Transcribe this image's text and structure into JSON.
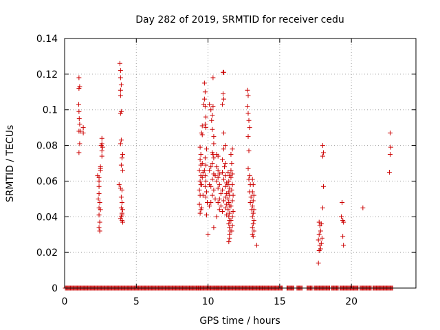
{
  "chart_data": {
    "type": "scatter",
    "title": "Day 282 of 2019, SRMTID for receiver cedu",
    "xlabel": "GPS time / hours",
    "ylabel": "SRMTID / TECUs",
    "xlim": [
      0,
      24.5
    ],
    "ylim": [
      0,
      0.14
    ],
    "grid": true,
    "x_ticks": [
      0,
      5,
      10,
      15,
      20
    ],
    "x_tick_labels": [
      "0",
      "5",
      "10",
      "15",
      "20"
    ],
    "y_ticks": [
      0,
      0.02,
      0.04,
      0.06,
      0.08,
      0.1,
      0.12,
      0.14
    ],
    "y_tick_labels": [
      "0",
      "0.02",
      "0.04",
      "0.06",
      "0.08",
      "0.1",
      "0.12",
      "0.14"
    ],
    "marker": "+",
    "color": "#cc0000",
    "series": [
      {
        "name": "SRMTID",
        "points": [
          [
            1.0,
            0.118
          ],
          [
            1.05,
            0.113
          ],
          [
            1.0,
            0.112
          ],
          [
            0.98,
            0.103
          ],
          [
            1.0,
            0.099
          ],
          [
            1.02,
            0.095
          ],
          [
            1.05,
            0.092
          ],
          [
            1.0,
            0.088
          ],
          [
            1.1,
            0.088
          ],
          [
            1.3,
            0.09
          ],
          [
            1.3,
            0.087
          ],
          [
            1.05,
            0.081
          ],
          [
            1.0,
            0.076
          ],
          [
            2.3,
            0.063
          ],
          [
            2.4,
            0.062
          ],
          [
            2.5,
            0.068
          ],
          [
            2.5,
            0.067
          ],
          [
            2.5,
            0.066
          ],
          [
            2.4,
            0.06
          ],
          [
            2.4,
            0.057
          ],
          [
            2.4,
            0.053
          ],
          [
            2.35,
            0.05
          ],
          [
            2.45,
            0.048
          ],
          [
            2.4,
            0.045
          ],
          [
            2.5,
            0.044
          ],
          [
            2.4,
            0.041
          ],
          [
            2.45,
            0.037
          ],
          [
            2.4,
            0.034
          ],
          [
            2.45,
            0.032
          ],
          [
            2.6,
            0.084
          ],
          [
            2.6,
            0.081
          ],
          [
            2.55,
            0.08
          ],
          [
            2.65,
            0.079
          ],
          [
            2.6,
            0.077
          ],
          [
            2.6,
            0.074
          ],
          [
            3.85,
            0.126
          ],
          [
            3.9,
            0.122
          ],
          [
            3.9,
            0.118
          ],
          [
            3.95,
            0.114
          ],
          [
            3.9,
            0.111
          ],
          [
            3.9,
            0.108
          ],
          [
            3.95,
            0.099
          ],
          [
            3.9,
            0.098
          ],
          [
            3.95,
            0.083
          ],
          [
            3.9,
            0.081
          ],
          [
            4.0,
            0.073
          ],
          [
            4.05,
            0.075
          ],
          [
            3.95,
            0.069
          ],
          [
            4.05,
            0.066
          ],
          [
            3.8,
            0.058
          ],
          [
            3.9,
            0.056
          ],
          [
            4.0,
            0.055
          ],
          [
            3.95,
            0.051
          ],
          [
            4.0,
            0.048
          ],
          [
            3.95,
            0.045
          ],
          [
            4.05,
            0.044
          ],
          [
            4.0,
            0.042
          ],
          [
            4.0,
            0.041
          ],
          [
            3.9,
            0.039
          ],
          [
            4.0,
            0.038
          ],
          [
            4.05,
            0.037
          ],
          [
            3.95,
            0.04
          ],
          [
            9.45,
            0.079
          ],
          [
            9.5,
            0.075
          ],
          [
            9.45,
            0.072
          ],
          [
            9.5,
            0.069
          ],
          [
            9.4,
            0.066
          ],
          [
            9.5,
            0.063
          ],
          [
            9.45,
            0.06
          ],
          [
            9.5,
            0.058
          ],
          [
            9.4,
            0.055
          ],
          [
            9.45,
            0.052
          ],
          [
            9.4,
            0.047
          ],
          [
            9.5,
            0.044
          ],
          [
            9.45,
            0.042
          ],
          [
            9.6,
            0.091
          ],
          [
            9.55,
            0.087
          ],
          [
            9.6,
            0.086
          ],
          [
            9.6,
            0.07
          ],
          [
            9.65,
            0.065
          ],
          [
            9.6,
            0.062
          ],
          [
            9.55,
            0.058
          ],
          [
            9.65,
            0.052
          ],
          [
            9.55,
            0.045
          ],
          [
            9.75,
            0.115
          ],
          [
            9.8,
            0.11
          ],
          [
            9.7,
            0.103
          ],
          [
            9.8,
            0.102
          ],
          [
            9.75,
            0.106
          ],
          [
            9.85,
            0.096
          ],
          [
            9.8,
            0.092
          ],
          [
            9.85,
            0.09
          ],
          [
            9.9,
            0.078
          ],
          [
            9.8,
            0.073
          ],
          [
            9.85,
            0.069
          ],
          [
            9.75,
            0.066
          ],
          [
            9.8,
            0.063
          ],
          [
            9.85,
            0.06
          ],
          [
            9.8,
            0.057
          ],
          [
            9.9,
            0.054
          ],
          [
            9.85,
            0.051
          ],
          [
            9.95,
            0.048
          ],
          [
            9.9,
            0.041
          ],
          [
            10.0,
            0.03
          ],
          [
            10.1,
            0.103
          ],
          [
            10.2,
            0.1
          ],
          [
            10.3,
            0.097
          ],
          [
            10.25,
            0.094
          ],
          [
            10.3,
            0.089
          ],
          [
            10.35,
            0.118
          ],
          [
            10.35,
            0.102
          ],
          [
            10.4,
            0.085
          ],
          [
            10.4,
            0.081
          ],
          [
            10.3,
            0.076
          ],
          [
            10.35,
            0.075
          ],
          [
            10.4,
            0.073
          ],
          [
            10.3,
            0.07
          ],
          [
            10.2,
            0.068
          ],
          [
            10.1,
            0.066
          ],
          [
            10.4,
            0.064
          ],
          [
            10.5,
            0.063
          ],
          [
            10.3,
            0.061
          ],
          [
            10.1,
            0.058
          ],
          [
            10.2,
            0.057
          ],
          [
            10.4,
            0.055
          ],
          [
            10.3,
            0.052
          ],
          [
            10.5,
            0.05
          ],
          [
            10.2,
            0.048
          ],
          [
            10.1,
            0.046
          ],
          [
            10.4,
            0.034
          ],
          [
            10.6,
            0.075
          ],
          [
            10.7,
            0.074
          ],
          [
            10.6,
            0.068
          ],
          [
            10.7,
            0.066
          ],
          [
            10.8,
            0.064
          ],
          [
            10.7,
            0.062
          ],
          [
            10.6,
            0.06
          ],
          [
            10.8,
            0.058
          ],
          [
            10.7,
            0.056
          ],
          [
            10.9,
            0.053
          ],
          [
            10.8,
            0.05
          ],
          [
            10.7,
            0.048
          ],
          [
            10.9,
            0.046
          ],
          [
            10.8,
            0.044
          ],
          [
            10.6,
            0.04
          ],
          [
            11.05,
            0.121
          ],
          [
            11.1,
            0.121
          ],
          [
            11.05,
            0.109
          ],
          [
            11.1,
            0.106
          ],
          [
            11.0,
            0.103
          ],
          [
            11.1,
            0.087
          ],
          [
            11.2,
            0.08
          ],
          [
            11.1,
            0.078
          ],
          [
            11.0,
            0.072
          ],
          [
            11.2,
            0.07
          ],
          [
            11.15,
            0.068
          ],
          [
            11.0,
            0.065
          ],
          [
            11.2,
            0.063
          ],
          [
            11.1,
            0.061
          ],
          [
            11.3,
            0.059
          ],
          [
            11.2,
            0.057
          ],
          [
            11.0,
            0.055
          ],
          [
            11.3,
            0.053
          ],
          [
            11.2,
            0.051
          ],
          [
            11.1,
            0.049
          ],
          [
            11.3,
            0.047
          ],
          [
            11.2,
            0.045
          ],
          [
            11.0,
            0.043
          ],
          [
            11.3,
            0.041
          ],
          [
            11.4,
            0.065
          ],
          [
            11.5,
            0.063
          ],
          [
            11.45,
            0.06
          ],
          [
            11.4,
            0.058
          ],
          [
            11.5,
            0.056
          ],
          [
            11.45,
            0.054
          ],
          [
            11.5,
            0.052
          ],
          [
            11.4,
            0.05
          ],
          [
            11.45,
            0.048
          ],
          [
            11.5,
            0.046
          ],
          [
            11.4,
            0.044
          ],
          [
            11.5,
            0.042
          ],
          [
            11.45,
            0.04
          ],
          [
            11.5,
            0.038
          ],
          [
            11.45,
            0.036
          ],
          [
            11.5,
            0.034
          ],
          [
            11.55,
            0.032
          ],
          [
            11.5,
            0.03
          ],
          [
            11.5,
            0.028
          ],
          [
            11.45,
            0.026
          ],
          [
            11.6,
            0.075
          ],
          [
            11.65,
            0.07
          ],
          [
            11.6,
            0.066
          ],
          [
            11.7,
            0.078
          ],
          [
            11.7,
            0.064
          ],
          [
            11.6,
            0.062
          ],
          [
            11.7,
            0.058
          ],
          [
            11.65,
            0.055
          ],
          [
            11.75,
            0.052
          ],
          [
            11.7,
            0.049
          ],
          [
            11.6,
            0.046
          ],
          [
            11.75,
            0.043
          ],
          [
            11.7,
            0.04
          ],
          [
            11.6,
            0.038
          ],
          [
            11.7,
            0.035
          ],
          [
            11.65,
            0.032
          ],
          [
            12.75,
            0.111
          ],
          [
            12.8,
            0.108
          ],
          [
            12.75,
            0.102
          ],
          [
            12.8,
            0.098
          ],
          [
            12.85,
            0.094
          ],
          [
            12.9,
            0.09
          ],
          [
            12.8,
            0.085
          ],
          [
            12.85,
            0.077
          ],
          [
            12.8,
            0.067
          ],
          [
            12.9,
            0.063
          ],
          [
            12.85,
            0.061
          ],
          [
            12.95,
            0.058
          ],
          [
            12.9,
            0.054
          ],
          [
            13.0,
            0.051
          ],
          [
            12.95,
            0.048
          ],
          [
            13.05,
            0.044
          ],
          [
            13.1,
            0.061
          ],
          [
            13.15,
            0.058
          ],
          [
            13.1,
            0.054
          ],
          [
            13.2,
            0.052
          ],
          [
            13.15,
            0.049
          ],
          [
            13.1,
            0.046
          ],
          [
            13.2,
            0.044
          ],
          [
            13.15,
            0.042
          ],
          [
            13.1,
            0.04
          ],
          [
            13.2,
            0.038
          ],
          [
            13.15,
            0.036
          ],
          [
            13.1,
            0.034
          ],
          [
            13.2,
            0.032
          ],
          [
            13.1,
            0.03
          ],
          [
            13.15,
            0.029
          ],
          [
            13.4,
            0.024
          ],
          [
            17.75,
            0.037
          ],
          [
            17.8,
            0.035
          ],
          [
            17.75,
            0.03
          ],
          [
            17.7,
            0.027
          ],
          [
            17.8,
            0.024
          ],
          [
            17.75,
            0.021
          ],
          [
            17.7,
            0.014
          ],
          [
            17.9,
            0.036
          ],
          [
            17.85,
            0.032
          ],
          [
            17.95,
            0.028
          ],
          [
            17.9,
            0.025
          ],
          [
            17.85,
            0.022
          ],
          [
            18.0,
            0.08
          ],
          [
            18.05,
            0.076
          ],
          [
            18.0,
            0.074
          ],
          [
            18.05,
            0.057
          ],
          [
            18.0,
            0.045
          ],
          [
            19.35,
            0.048
          ],
          [
            19.3,
            0.04
          ],
          [
            19.4,
            0.038
          ],
          [
            19.45,
            0.037
          ],
          [
            19.4,
            0.029
          ],
          [
            19.45,
            0.024
          ],
          [
            20.8,
            0.045
          ],
          [
            22.7,
            0.087
          ],
          [
            22.75,
            0.079
          ],
          [
            22.7,
            0.075
          ],
          [
            22.65,
            0.065
          ]
        ]
      }
    ],
    "zero_baseline_segments": [
      [
        0.05,
        4.2
      ],
      [
        4.2,
        9.3
      ],
      [
        9.35,
        10.55
      ],
      [
        10.6,
        11.2
      ],
      [
        11.25,
        13.8
      ],
      [
        13.8,
        15.2
      ],
      [
        15.5,
        16.0
      ],
      [
        16.2,
        16.6
      ],
      [
        16.9,
        17.3
      ],
      [
        17.4,
        18.5
      ],
      [
        18.6,
        19.1
      ],
      [
        19.2,
        20.5
      ],
      [
        20.6,
        21.4
      ],
      [
        21.5,
        22.9
      ]
    ]
  }
}
